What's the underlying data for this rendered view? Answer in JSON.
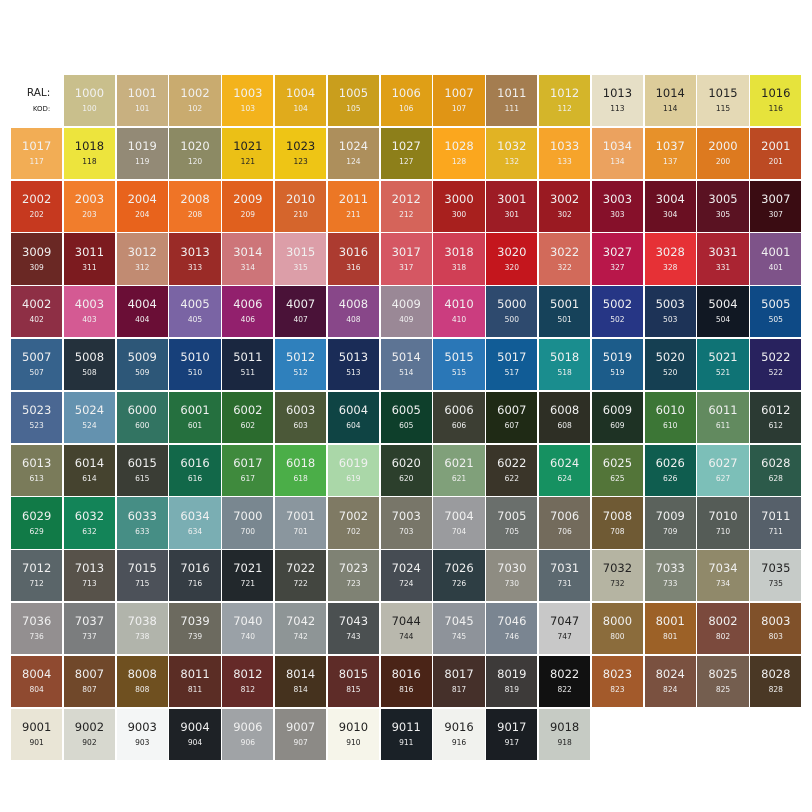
{
  "header": {
    "ral_label": "RAL:",
    "kod_label": "KOD:"
  },
  "swatches": [
    [
      "1000",
      "100",
      "#c9bf8c"
    ],
    [
      "1001",
      "101",
      "#c8b080"
    ],
    [
      "1002",
      "102",
      "#c9ab6f"
    ],
    [
      "1003",
      "103",
      "#f3b31c"
    ],
    [
      "1004",
      "104",
      "#e0ab1c"
    ],
    [
      "1005",
      "105",
      "#c99e1d"
    ],
    [
      "1006",
      "106",
      "#df9f16"
    ],
    [
      "1007",
      "107",
      "#e09515"
    ],
    [
      "1011",
      "111",
      "#a47d50"
    ],
    [
      "1012",
      "112",
      "#d4b52a"
    ],
    [
      "1013",
      "113",
      "#e6dfc6"
    ],
    [
      "1014",
      "114",
      "#dccc9a"
    ],
    [
      "1015",
      "115",
      "#e4d9b5"
    ],
    [
      "1016",
      "116",
      "#e6e33c"
    ],
    [
      "1017",
      "117",
      "#f2ad55"
    ],
    [
      "1018",
      "118",
      "#ede43d"
    ],
    [
      "1019",
      "119",
      "#938a76"
    ],
    [
      "1020",
      "120",
      "#8c8a64"
    ],
    [
      "1021",
      "121",
      "#ebc016"
    ],
    [
      "1023",
      "123",
      "#eec515"
    ],
    [
      "1024",
      "124",
      "#ad8f5c"
    ],
    [
      "1027",
      "127",
      "#8d7f1a"
    ],
    [
      "1028",
      "128",
      "#fba71e"
    ],
    [
      "1032",
      "132",
      "#e1b324"
    ],
    [
      "1033",
      "133",
      "#f6a42b"
    ],
    [
      "1034",
      "134",
      "#eba25f"
    ],
    [
      "1037",
      "137",
      "#e7912a"
    ],
    [
      "2000",
      "200",
      "#dd7a1f"
    ],
    [
      "2001",
      "201",
      "#bc4a23"
    ],
    [
      "2002",
      "202",
      "#c6391f"
    ],
    [
      "2003",
      "203",
      "#f17d2c"
    ],
    [
      "2004",
      "204",
      "#e8631c"
    ],
    [
      "2008",
      "208",
      "#ef7426"
    ],
    [
      "2009",
      "209",
      "#e0601e"
    ],
    [
      "2010",
      "210",
      "#d5652c"
    ],
    [
      "2011",
      "211",
      "#ec7725"
    ],
    [
      "2012",
      "212",
      "#d5645a"
    ],
    [
      "3000",
      "300",
      "#a8201e"
    ],
    [
      "3001",
      "301",
      "#9d1c25"
    ],
    [
      "3002",
      "302",
      "#9a1a22"
    ],
    [
      "3003",
      "303",
      "#86102a"
    ],
    [
      "3004",
      "304",
      "#6a0f22"
    ],
    [
      "3005",
      "305",
      "#5a1222"
    ],
    [
      "3007",
      "307",
      "#3a0c12"
    ],
    [
      "3009",
      "309",
      "#6a2824"
    ],
    [
      "3011",
      "311",
      "#7c1b1f"
    ],
    [
      "3012",
      "312",
      "#c18b72"
    ],
    [
      "3013",
      "313",
      "#9a2b27"
    ],
    [
      "3014",
      "314",
      "#cd7579"
    ],
    [
      "3015",
      "315",
      "#dc9ea8"
    ],
    [
      "3016",
      "316",
      "#ac3b30"
    ],
    [
      "3017",
      "317",
      "#d55763"
    ],
    [
      "3018",
      "318",
      "#d03f55"
    ],
    [
      "3020",
      "320",
      "#c4161d"
    ],
    [
      "3022",
      "322",
      "#d26a5a"
    ],
    [
      "3027",
      "327",
      "#b8174a"
    ],
    [
      "3028",
      "328",
      "#e63136"
    ],
    [
      "3031",
      "331",
      "#aa2432"
    ],
    [
      "4001",
      "401",
      "#7e5389"
    ],
    [
      "4002",
      "402",
      "#8e2f45"
    ],
    [
      "4003",
      "403",
      "#d45a93"
    ],
    [
      "4004",
      "404",
      "#6a0e36"
    ],
    [
      "4005",
      "405",
      "#7a64a4"
    ],
    [
      "4006",
      "406",
      "#92206d"
    ],
    [
      "4007",
      "407",
      "#4a1238"
    ],
    [
      "4008",
      "408",
      "#884789"
    ],
    [
      "4009",
      "409",
      "#9a8896"
    ],
    [
      "4010",
      "410",
      "#cb3d7f"
    ],
    [
      "5000",
      "500",
      "#2e4a6e"
    ],
    [
      "5001",
      "501",
      "#16425a"
    ],
    [
      "5002",
      "502",
      "#263685"
    ],
    [
      "5003",
      "503",
      "#1d3357"
    ],
    [
      "5004",
      "504",
      "#111823"
    ],
    [
      "5005",
      "505",
      "#0e4a86"
    ],
    [
      "5007",
      "507",
      "#36628c"
    ],
    [
      "5008",
      "508",
      "#24313c"
    ],
    [
      "5009",
      "509",
      "#2d5778"
    ],
    [
      "5010",
      "510",
      "#17407a"
    ],
    [
      "5011",
      "511",
      "#1a2740"
    ],
    [
      "5012",
      "512",
      "#2f80bc"
    ],
    [
      "5013",
      "513",
      "#1a2c57"
    ],
    [
      "5014",
      "514",
      "#5d7494"
    ],
    [
      "5015",
      "515",
      "#2a77b7"
    ],
    [
      "5017",
      "517",
      "#115c96"
    ],
    [
      "5018",
      "518",
      "#1a8d8e"
    ],
    [
      "5019",
      "519",
      "#1c5c8a"
    ],
    [
      "5020",
      "520",
      "#153f52"
    ],
    [
      "5021",
      "521",
      "#0f7375"
    ],
    [
      "5022",
      "522",
      "#28225e"
    ],
    [
      "5023",
      "523",
      "#4a6792"
    ],
    [
      "5024",
      "524",
      "#6492af"
    ],
    [
      "6000",
      "600",
      "#327462"
    ],
    [
      "6001",
      "601",
      "#25703f"
    ],
    [
      "6002",
      "602",
      "#2b6b2e"
    ],
    [
      "6003",
      "603",
      "#4b5838"
    ],
    [
      "6004",
      "604",
      "#0f4444"
    ],
    [
      "6005",
      "605",
      "#0e3f2b"
    ],
    [
      "6006",
      "606",
      "#3c3e33"
    ],
    [
      "6007",
      "607",
      "#1f2a15"
    ],
    [
      "6008",
      "608",
      "#2e2f25"
    ],
    [
      "6009",
      "609",
      "#1e3224"
    ],
    [
      "6010",
      "610",
      "#3c7636"
    ],
    [
      "6011",
      "611",
      "#628a5f"
    ],
    [
      "6012",
      "612",
      "#2b3a33"
    ],
    [
      "6013",
      "613",
      "#7a7b5a"
    ],
    [
      "6014",
      "614",
      "#45432f"
    ],
    [
      "6015",
      "615",
      "#3a3d35"
    ],
    [
      "6016",
      "616",
      "#126849"
    ],
    [
      "6017",
      "617",
      "#3f8a3d"
    ],
    [
      "6018",
      "618",
      "#4bae48"
    ],
    [
      "6019",
      "619",
      "#aad7a8"
    ],
    [
      "6020",
      "620",
      "#2c3f2c"
    ],
    [
      "6021",
      "621",
      "#80a07a"
    ],
    [
      "6022",
      "622",
      "#3a3529"
    ],
    [
      "6024",
      "624",
      "#169161"
    ],
    [
      "6025",
      "625",
      "#537539"
    ],
    [
      "6026",
      "626",
      "#0f5d4f"
    ],
    [
      "6027",
      "627",
      "#7cbfb8"
    ],
    [
      "6028",
      "628",
      "#2c5a4a"
    ],
    [
      "6029",
      "629",
      "#117a47"
    ],
    [
      "6032",
      "632",
      "#138458"
    ],
    [
      "6033",
      "633",
      "#468e85"
    ],
    [
      "6034",
      "634",
      "#7aaeb3"
    ],
    [
      "7000",
      "700",
      "#798790"
    ],
    [
      "7001",
      "701",
      "#8a969e"
    ],
    [
      "7002",
      "702",
      "#7f7a64"
    ],
    [
      "7003",
      "703",
      "#787669"
    ],
    [
      "7004",
      "704",
      "#9a9b9e"
    ],
    [
      "7005",
      "705",
      "#6a6f6c"
    ],
    [
      "7006",
      "706",
      "#736b5c"
    ],
    [
      "7008",
      "708",
      "#6f5a34"
    ],
    [
      "7009",
      "709",
      "#5b625c"
    ],
    [
      "7010",
      "710",
      "#555c57"
    ],
    [
      "7011",
      "711",
      "#56606a"
    ],
    [
      "7012",
      "712",
      "#5a6569"
    ],
    [
      "7013",
      "713",
      "#57524a"
    ],
    [
      "7015",
      "715",
      "#4c5159"
    ],
    [
      "7016",
      "716",
      "#353d44"
    ],
    [
      "7021",
      "721",
      "#22282c"
    ],
    [
      "7022",
      "722",
      "#434640"
    ],
    [
      "7023",
      "723",
      "#7f8274"
    ],
    [
      "7024",
      "724",
      "#464c53"
    ],
    [
      "7026",
      "726",
      "#2e3e44"
    ],
    [
      "7030",
      "730",
      "#8e8c82"
    ],
    [
      "7031",
      "731",
      "#5c6970"
    ],
    [
      "7032",
      "732",
      "#b5b4a2"
    ],
    [
      "7033",
      "733",
      "#7d8475"
    ],
    [
      "7034",
      "734",
      "#90896a"
    ],
    [
      "7035",
      "735",
      "#c6cbc8"
    ],
    [
      "7036",
      "736",
      "#938f90"
    ],
    [
      "7037",
      "737",
      "#7b7d7e"
    ],
    [
      "7038",
      "738",
      "#b1b4ab"
    ],
    [
      "7039",
      "739",
      "#6c6a5f"
    ],
    [
      "7040",
      "740",
      "#9aa1a7"
    ],
    [
      "7042",
      "742",
      "#8e9596"
    ],
    [
      "7043",
      "743",
      "#4b5051"
    ],
    [
      "7044",
      "744",
      "#b9b8ad"
    ],
    [
      "7045",
      "745",
      "#8e939a"
    ],
    [
      "7046",
      "746",
      "#7a8591"
    ],
    [
      "7047",
      "747",
      "#c8c8c8"
    ],
    [
      "8000",
      "800",
      "#8b6c3c"
    ],
    [
      "8001",
      "801",
      "#9c6127"
    ],
    [
      "8002",
      "802",
      "#7b4a3d"
    ],
    [
      "8003",
      "803",
      "#80512a"
    ],
    [
      "8004",
      "804",
      "#8f4a30"
    ],
    [
      "8007",
      "807",
      "#70482a"
    ],
    [
      "8008",
      "808",
      "#6f5020"
    ],
    [
      "8011",
      "811",
      "#5b2d25"
    ],
    [
      "8012",
      "812",
      "#652a28"
    ],
    [
      "8014",
      "814",
      "#45321e"
    ],
    [
      "8015",
      "815",
      "#5e2c28"
    ],
    [
      "8016",
      "816",
      "#4a2417"
    ],
    [
      "8017",
      "817",
      "#45302a"
    ],
    [
      "8019",
      "819",
      "#3d3a39"
    ],
    [
      "8022",
      "822",
      "#111111"
    ],
    [
      "8023",
      "823",
      "#a35a2b"
    ],
    [
      "8024",
      "824",
      "#7a5140"
    ],
    [
      "8025",
      "825",
      "#745e4f"
    ],
    [
      "8028",
      "828",
      "#4a3825"
    ],
    [
      "9001",
      "901",
      "#e9e5d6"
    ],
    [
      "9002",
      "902",
      "#d7d8cf"
    ],
    [
      "9003",
      "903",
      "#f4f6f6"
    ],
    [
      "9004",
      "904",
      "#1e2226"
    ],
    [
      "9006",
      "906",
      "#a0a3a6"
    ],
    [
      "9007",
      "907",
      "#8c8a86"
    ],
    [
      "9010",
      "910",
      "#f6f5ea"
    ],
    [
      "9011",
      "911",
      "#1a2127"
    ],
    [
      "9016",
      "916",
      "#f1f2ee"
    ],
    [
      "9017",
      "917",
      "#1a1e23"
    ],
    [
      "9018",
      "918",
      "#c6cbc4"
    ]
  ],
  "dark_text_codes": [
    "1013",
    "1014",
    "1015",
    "1016",
    "1018",
    "1021",
    "1023",
    "7032",
    "7035",
    "7044",
    "7047",
    "9001",
    "9002",
    "9003",
    "9010",
    "9016",
    "9018"
  ]
}
